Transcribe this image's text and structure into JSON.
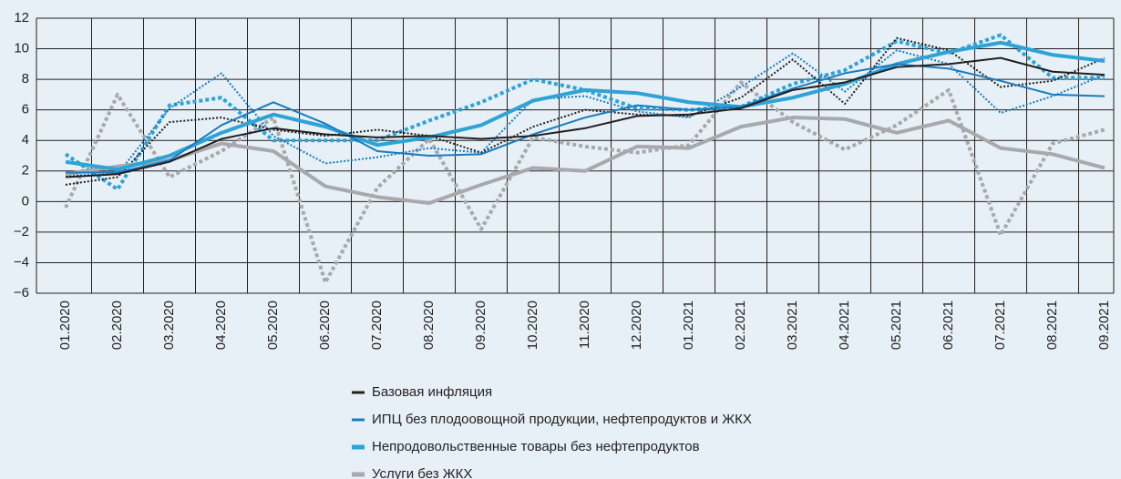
{
  "chart_data": {
    "type": "line",
    "categories": [
      "01.2020",
      "02.2020",
      "03.2020",
      "04.2020",
      "05.2020",
      "06.2020",
      "07.2020",
      "08.2020",
      "09.2020",
      "10.2020",
      "11.2020",
      "12.2020",
      "01.2021",
      "02.2021",
      "03.2021",
      "04.2021",
      "05.2021",
      "06.2021",
      "07.2021",
      "08.2021",
      "09.2021"
    ],
    "ylim": [
      -6,
      12
    ],
    "yticks": [
      {
        "value": -6,
        "label": "−6"
      },
      {
        "value": -4,
        "label": "−4"
      },
      {
        "value": -2,
        "label": "−2"
      },
      0,
      2,
      4,
      6,
      8,
      10,
      12
    ],
    "grid": true,
    "legend": "bottom",
    "series": [
      {
        "color": "#a7a9ac",
        "width": 4,
        "dash": "dotted",
        "values": [
          -0.4,
          7.0,
          1.6,
          3.3,
          5.5,
          -5.3,
          0.9,
          4.1,
          -1.8,
          4.2,
          3.6,
          3.2,
          3.7,
          7.8,
          5.2,
          3.4,
          5.0,
          7.3,
          -2.2,
          3.8,
          4.7
        ]
      },
      {
        "color": "#2ea3d6",
        "width": 4,
        "dash": "dotted",
        "values": [
          3.1,
          0.8,
          6.3,
          6.8,
          4.0,
          4.0,
          4.0,
          5.3,
          6.5,
          8.0,
          7.3,
          6.1,
          6.0,
          6.2,
          7.7,
          8.6,
          10.5,
          9.7,
          10.9,
          8.1,
          8.1
        ]
      },
      {
        "color": "#1a7bbf",
        "width": 2,
        "dash": "dotted",
        "values": [
          1.7,
          1.8,
          6.1,
          8.4,
          4.3,
          2.5,
          2.9,
          3.5,
          3.2,
          6.7,
          6.9,
          5.9,
          5.5,
          7.5,
          9.7,
          7.2,
          9.9,
          9.0,
          5.8,
          6.9,
          8.3
        ]
      },
      {
        "color": "#231f20",
        "width": 2,
        "dash": "dotted",
        "values": [
          1.1,
          1.6,
          5.2,
          5.5,
          4.7,
          4.3,
          4.7,
          4.3,
          3.2,
          4.9,
          6.0,
          5.7,
          5.6,
          6.8,
          9.3,
          6.4,
          10.7,
          9.9,
          7.5,
          7.9,
          9.4
        ]
      },
      {
        "name": "Услуги без ЖКХ",
        "color": "#a7a9ac",
        "width": 4,
        "dash": "solid",
        "values": [
          1.8,
          2.3,
          2.7,
          3.8,
          3.3,
          1.0,
          0.3,
          -0.1,
          1.1,
          2.2,
          2.0,
          3.6,
          3.5,
          4.9,
          5.5,
          5.4,
          4.5,
          5.3,
          3.5,
          3.1,
          2.2
        ]
      },
      {
        "name": "Непродовольственные товары без нефтепродуктов",
        "color": "#2ea3d6",
        "width": 4,
        "dash": "solid",
        "values": [
          2.6,
          2.1,
          3.0,
          4.5,
          5.7,
          4.9,
          3.7,
          4.2,
          5.0,
          6.6,
          7.3,
          7.1,
          6.5,
          6.2,
          6.8,
          7.7,
          9.0,
          9.8,
          10.4,
          9.6,
          9.2
        ]
      },
      {
        "name": "ИПЦ без плодоовощной продукции, нефтепродуктов и ЖКХ",
        "color": "#1a7bbf",
        "width": 2,
        "dash": "solid",
        "values": [
          1.9,
          1.9,
          2.7,
          5.0,
          6.5,
          5.1,
          3.3,
          3.0,
          3.1,
          4.4,
          5.5,
          6.3,
          6.0,
          6.2,
          7.4,
          8.4,
          9.0,
          8.7,
          7.9,
          7.0,
          6.9
        ]
      },
      {
        "name": "Базовая инфляция",
        "color": "#231f20",
        "width": 2,
        "dash": "solid",
        "values": [
          1.6,
          1.8,
          2.6,
          4.1,
          4.8,
          4.4,
          4.2,
          4.3,
          4.1,
          4.3,
          4.8,
          5.6,
          5.7,
          6.1,
          7.3,
          7.8,
          8.8,
          9.0,
          9.4,
          8.5,
          8.3
        ]
      }
    ]
  }
}
